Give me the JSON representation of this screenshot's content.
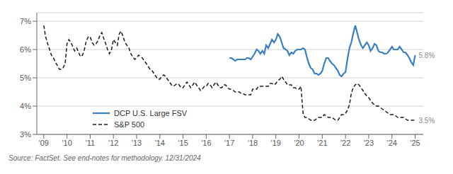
{
  "chart_data": {
    "type": "line",
    "source": "Source: FactSet. See end-notes for methodology. 12/31/2024",
    "legend": "lower left",
    "grid": true,
    "xlim": [
      2008.7,
      2025.35
    ],
    "xticks": [
      {
        "value": 2009,
        "label": "'09"
      },
      {
        "value": 2010,
        "label": "'10"
      },
      {
        "value": 2011,
        "label": "'11"
      },
      {
        "value": 2012,
        "label": "'12"
      },
      {
        "value": 2013,
        "label": "'13"
      },
      {
        "value": 2014,
        "label": "'14"
      },
      {
        "value": 2015,
        "label": "'15"
      },
      {
        "value": 2016,
        "label": "'16"
      },
      {
        "value": 2017,
        "label": "'17"
      },
      {
        "value": 2018,
        "label": "'18"
      },
      {
        "value": 2019,
        "label": "'19"
      },
      {
        "value": 2020,
        "label": "'20"
      },
      {
        "value": 2021,
        "label": "'21"
      },
      {
        "value": 2022,
        "label": "'22"
      },
      {
        "value": 2023,
        "label": "'23"
      },
      {
        "value": 2024,
        "label": "'24"
      },
      {
        "value": 2025,
        "label": "'25"
      }
    ],
    "ylim": [
      0.03,
      0.073
    ],
    "yticks": [
      {
        "value": 0.03,
        "label": "3%"
      },
      {
        "value": 0.04,
        "label": "4%"
      },
      {
        "value": 0.05,
        "label": "5%"
      },
      {
        "value": 0.06,
        "label": "6%"
      },
      {
        "value": 0.07,
        "label": "7%"
      }
    ],
    "series": [
      {
        "name": "DCP U.S. Large FSV",
        "color": "#3a7fc1",
        "line_style": "solid",
        "annotation": "5.8%",
        "x": [
          2017.0,
          2017.08,
          2017.17,
          2017.25,
          2017.33,
          2017.42,
          2017.5,
          2017.58,
          2017.67,
          2017.75,
          2017.83,
          2017.92,
          2018.0,
          2018.08,
          2018.17,
          2018.25,
          2018.33,
          2018.42,
          2018.5,
          2018.58,
          2018.67,
          2018.75,
          2018.83,
          2018.92,
          2019.0,
          2019.08,
          2019.17,
          2019.25,
          2019.33,
          2019.42,
          2019.5,
          2019.58,
          2019.67,
          2019.75,
          2019.83,
          2019.92,
          2020.0,
          2020.08,
          2020.17,
          2020.25,
          2020.33,
          2020.42,
          2020.5,
          2020.58,
          2020.67,
          2020.75,
          2020.83,
          2020.92,
          2021.0,
          2021.08,
          2021.17,
          2021.25,
          2021.33,
          2021.42,
          2021.5,
          2021.58,
          2021.67,
          2021.75,
          2021.83,
          2021.92,
          2022.0,
          2022.08,
          2022.17,
          2022.25,
          2022.33,
          2022.42,
          2022.5,
          2022.58,
          2022.67,
          2022.75,
          2022.83,
          2022.92,
          2023.0,
          2023.08,
          2023.17,
          2023.25,
          2023.33,
          2023.42,
          2023.5,
          2023.58,
          2023.67,
          2023.75,
          2023.83,
          2023.92,
          2024.0,
          2024.08,
          2024.17,
          2024.25,
          2024.33,
          2024.42,
          2024.5,
          2024.58,
          2024.67,
          2024.75,
          2024.83,
          2024.92,
          2025.0
        ],
        "values": [
          0.057,
          0.057,
          0.0565,
          0.056,
          0.0565,
          0.0565,
          0.0565,
          0.0565,
          0.0565,
          0.057,
          0.057,
          0.0565,
          0.0575,
          0.0585,
          0.06,
          0.0595,
          0.0585,
          0.0595,
          0.0585,
          0.0615,
          0.0605,
          0.062,
          0.0635,
          0.0625,
          0.0635,
          0.0655,
          0.0645,
          0.0625,
          0.0605,
          0.06,
          0.0595,
          0.058,
          0.059,
          0.0585,
          0.0595,
          0.06,
          0.06,
          0.06,
          0.0605,
          0.06,
          0.0575,
          0.055,
          0.0535,
          0.053,
          0.0515,
          0.0515,
          0.051,
          0.0515,
          0.0525,
          0.055,
          0.057,
          0.057,
          0.056,
          0.055,
          0.0545,
          0.0535,
          0.0525,
          0.051,
          0.0505,
          0.0515,
          0.052,
          0.0565,
          0.0605,
          0.0625,
          0.0655,
          0.0685,
          0.066,
          0.0635,
          0.0615,
          0.0605,
          0.0615,
          0.0625,
          0.0615,
          0.0595,
          0.0605,
          0.062,
          0.0615,
          0.0595,
          0.059,
          0.059,
          0.0585,
          0.0585,
          0.059,
          0.06,
          0.061,
          0.06,
          0.06,
          0.06,
          0.061,
          0.06,
          0.059,
          0.059,
          0.058,
          0.057,
          0.0555,
          0.0545,
          0.058
        ]
      },
      {
        "name": "S&P 500",
        "color": "#1a1a1a",
        "line_style": "dashed",
        "annotation": "3.5%",
        "x": [
          2009.0,
          2009.08,
          2009.17,
          2009.25,
          2009.33,
          2009.42,
          2009.5,
          2009.58,
          2009.67,
          2009.75,
          2009.83,
          2009.92,
          2010.0,
          2010.08,
          2010.17,
          2010.25,
          2010.33,
          2010.42,
          2010.5,
          2010.58,
          2010.67,
          2010.75,
          2010.83,
          2010.92,
          2011.0,
          2011.08,
          2011.17,
          2011.25,
          2011.33,
          2011.42,
          2011.5,
          2011.58,
          2011.67,
          2011.75,
          2011.83,
          2011.92,
          2012.0,
          2012.08,
          2012.17,
          2012.25,
          2012.33,
          2012.42,
          2012.5,
          2012.58,
          2012.67,
          2012.75,
          2012.83,
          2012.92,
          2013.0,
          2013.08,
          2013.17,
          2013.25,
          2013.33,
          2013.42,
          2013.5,
          2013.58,
          2013.67,
          2013.75,
          2013.83,
          2013.92,
          2014.0,
          2014.08,
          2014.17,
          2014.25,
          2014.33,
          2014.42,
          2014.5,
          2014.58,
          2014.67,
          2014.75,
          2014.83,
          2014.92,
          2015.0,
          2015.08,
          2015.17,
          2015.25,
          2015.33,
          2015.42,
          2015.5,
          2015.58,
          2015.67,
          2015.75,
          2015.83,
          2015.92,
          2016.0,
          2016.08,
          2016.17,
          2016.25,
          2016.33,
          2016.42,
          2016.5,
          2016.58,
          2016.67,
          2016.75,
          2016.83,
          2016.92,
          2017.0,
          2017.08,
          2017.17,
          2017.25,
          2017.33,
          2017.42,
          2017.5,
          2017.58,
          2017.67,
          2017.75,
          2017.83,
          2017.92,
          2018.0,
          2018.08,
          2018.17,
          2018.25,
          2018.33,
          2018.42,
          2018.5,
          2018.58,
          2018.67,
          2018.75,
          2018.83,
          2018.92,
          2019.0,
          2019.08,
          2019.17,
          2019.25,
          2019.33,
          2019.42,
          2019.5,
          2019.58,
          2019.67,
          2019.75,
          2019.83,
          2019.92,
          2020.0,
          2020.08,
          2020.17,
          2020.25,
          2020.33,
          2020.42,
          2020.5,
          2020.58,
          2020.67,
          2020.75,
          2020.83,
          2020.92,
          2021.0,
          2021.08,
          2021.17,
          2021.25,
          2021.33,
          2021.42,
          2021.5,
          2021.58,
          2021.67,
          2021.75,
          2021.83,
          2021.92,
          2022.0,
          2022.08,
          2022.17,
          2022.25,
          2022.33,
          2022.42,
          2022.5,
          2022.58,
          2022.67,
          2022.75,
          2022.83,
          2022.92,
          2023.0,
          2023.08,
          2023.17,
          2023.25,
          2023.33,
          2023.42,
          2023.5,
          2023.58,
          2023.67,
          2023.75,
          2023.83,
          2023.92,
          2024.0,
          2024.08,
          2024.17,
          2024.25,
          2024.33,
          2024.42,
          2024.5,
          2024.58,
          2024.67,
          2024.75,
          2024.83,
          2024.92,
          2025.0
        ],
        "values": [
          0.0685,
          0.0645,
          0.062,
          0.06,
          0.058,
          0.057,
          0.0555,
          0.0545,
          0.053,
          0.053,
          0.0535,
          0.055,
          0.062,
          0.0635,
          0.0625,
          0.061,
          0.0595,
          0.0605,
          0.059,
          0.0575,
          0.058,
          0.06,
          0.063,
          0.0645,
          0.0645,
          0.0625,
          0.0615,
          0.062,
          0.063,
          0.065,
          0.066,
          0.064,
          0.062,
          0.06,
          0.0585,
          0.06,
          0.0635,
          0.0625,
          0.0615,
          0.0655,
          0.0665,
          0.0645,
          0.0625,
          0.0615,
          0.0605,
          0.0585,
          0.0575,
          0.0565,
          0.057,
          0.058,
          0.0575,
          0.057,
          0.056,
          0.055,
          0.054,
          0.053,
          0.0525,
          0.0515,
          0.0505,
          0.0495,
          0.0495,
          0.0505,
          0.051,
          0.0505,
          0.0495,
          0.0485,
          0.0475,
          0.047,
          0.0475,
          0.048,
          0.0475,
          0.0465,
          0.0465,
          0.0475,
          0.0485,
          0.0475,
          0.0465,
          0.0475,
          0.0485,
          0.0475,
          0.0465,
          0.0455,
          0.046,
          0.047,
          0.047,
          0.048,
          0.0475,
          0.0465,
          0.0475,
          0.0485,
          0.0475,
          0.0465,
          0.0465,
          0.0475,
          0.0475,
          0.0465,
          0.046,
          0.046,
          0.0455,
          0.045,
          0.045,
          0.045,
          0.0445,
          0.0445,
          0.044,
          0.044,
          0.044,
          0.044,
          0.046,
          0.046,
          0.046,
          0.047,
          0.047,
          0.047,
          0.047,
          0.047,
          0.047,
          0.048,
          0.048,
          0.0475,
          0.048,
          0.049,
          0.0495,
          0.0505,
          0.0495,
          0.0485,
          0.0475,
          0.0475,
          0.0475,
          0.0465,
          0.0465,
          0.046,
          0.046,
          0.047,
          0.0375,
          0.036,
          0.036,
          0.0355,
          0.035,
          0.035,
          0.035,
          0.0355,
          0.036,
          0.036,
          0.036,
          0.037,
          0.0365,
          0.036,
          0.036,
          0.036,
          0.0355,
          0.035,
          0.035,
          0.036,
          0.037,
          0.037,
          0.0375,
          0.0385,
          0.0405,
          0.0445,
          0.0465,
          0.0475,
          0.048,
          0.0475,
          0.0465,
          0.0455,
          0.0445,
          0.0435,
          0.043,
          0.042,
          0.041,
          0.0405,
          0.04,
          0.04,
          0.0395,
          0.039,
          0.0385,
          0.038,
          0.0375,
          0.037,
          0.037,
          0.037,
          0.0365,
          0.036,
          0.036,
          0.036,
          0.036,
          0.0355,
          0.035,
          0.035,
          0.035,
          0.035,
          0.035
        ]
      }
    ]
  }
}
